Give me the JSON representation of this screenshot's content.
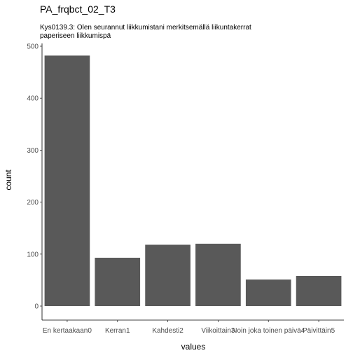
{
  "chart_data": {
    "type": "bar",
    "title": "PA_frqbct_02_T3",
    "subtitle_lines": [
      "Kys0139.3: Olen seurannut liikkumistani merkitsemällä liikuntakerrat",
      "paperiseen liikkumispä"
    ],
    "xlabel": "values",
    "ylabel": "count",
    "categories": [
      "En kertaakaan0",
      "Kerran1",
      "Kahdesti2",
      "Viikoittain3",
      "Noin joka toinen päivä4",
      "Päivittäin5"
    ],
    "values": [
      482,
      93,
      118,
      120,
      51,
      58
    ],
    "ylim": [
      0,
      510
    ],
    "yticks": [
      0,
      100,
      200,
      300,
      400,
      500
    ],
    "grid": false,
    "legend": "none",
    "bar_color": "#595959"
  }
}
